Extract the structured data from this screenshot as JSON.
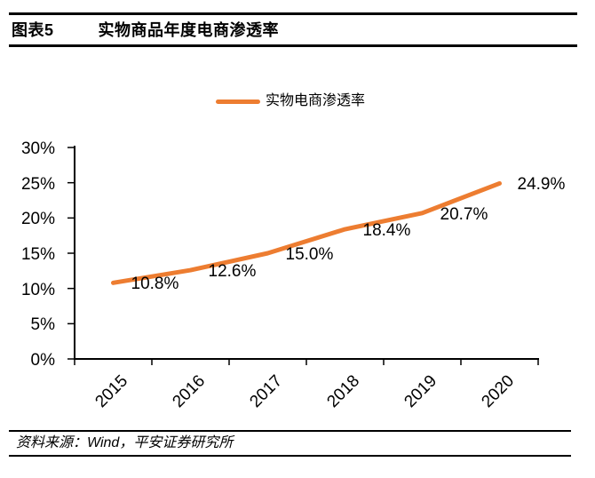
{
  "header": {
    "figure_label": "图表5",
    "title": "实物商品年度电商渗透率"
  },
  "chart_data": {
    "type": "line",
    "title": "实物商品年度电商渗透率",
    "categories": [
      "2015",
      "2016",
      "2017",
      "2018",
      "2019",
      "2020"
    ],
    "series": [
      {
        "name": "实物电商渗透率",
        "values": [
          10.8,
          12.6,
          15.0,
          18.4,
          20.7,
          24.9
        ]
      }
    ],
    "data_labels": [
      "10.8%",
      "12.6%",
      "15.0%",
      "18.4%",
      "20.7%",
      "24.9%"
    ],
    "y_ticks": [
      "30%",
      "25%",
      "20%",
      "15%",
      "10%",
      "5%",
      "0%"
    ],
    "ylim": [
      0,
      30
    ],
    "xlabel": "",
    "ylabel": "",
    "grid": false,
    "legend_position": "top-center",
    "line_color": "#ED7D31",
    "axis_color": "#000000"
  },
  "footer": {
    "source": "资料来源：Wind，平安证券研究所"
  }
}
